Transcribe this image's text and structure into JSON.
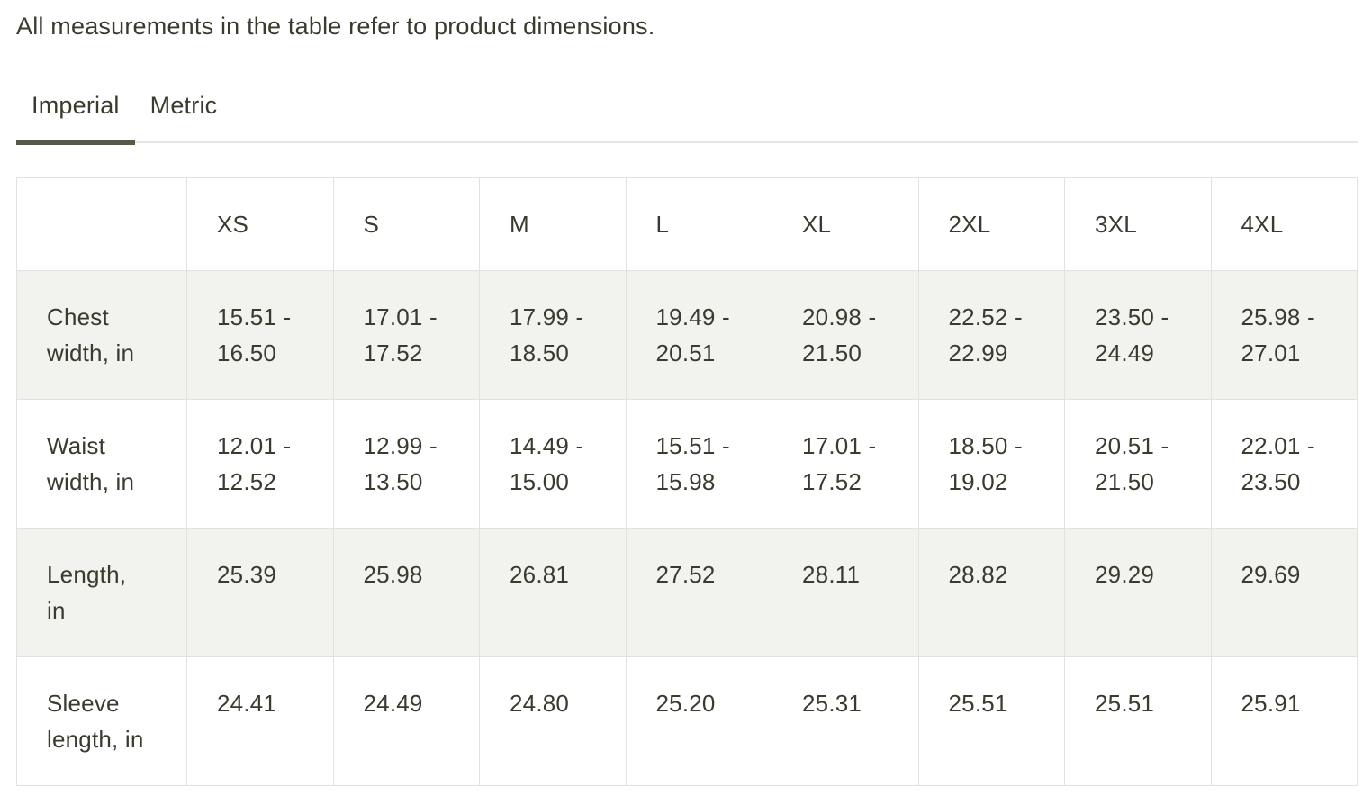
{
  "note": "All measurements in the table refer to product dimensions.",
  "tabs": [
    {
      "label": "Imperial",
      "active": true
    },
    {
      "label": "Metric",
      "active": false
    }
  ],
  "table": {
    "corner": "",
    "columns": [
      "XS",
      "S",
      "M",
      "L",
      "XL",
      "2XL",
      "3XL",
      "4XL"
    ],
    "rows": [
      {
        "label": "Chest\nwidth, in",
        "values": [
          "15.51 -\n16.50",
          "17.01 -\n17.52",
          "17.99 -\n18.50",
          "19.49 -\n20.51",
          "20.98 -\n21.50",
          "22.52 -\n22.99",
          "23.50 -\n24.49",
          "25.98 -\n27.01"
        ]
      },
      {
        "label": "Waist\nwidth, in",
        "values": [
          "12.01 -\n12.52",
          "12.99 -\n13.50",
          "14.49 -\n15.00",
          "15.51 -\n15.98",
          "17.01 -\n17.52",
          "18.50 -\n19.02",
          "20.51 -\n21.50",
          "22.01 -\n23.50"
        ]
      },
      {
        "label": "Length,\nin",
        "values": [
          "25.39",
          "25.98",
          "26.81",
          "27.52",
          "28.11",
          "28.82",
          "29.29",
          "29.69"
        ]
      },
      {
        "label": "Sleeve\nlength, in",
        "values": [
          "24.41",
          "24.49",
          "24.80",
          "25.20",
          "25.31",
          "25.51",
          "25.51",
          "25.91"
        ]
      }
    ]
  },
  "colors": {
    "text": "#3a3a2f",
    "active_tab_underline": "#585847",
    "tab_divider": "#e7e5e0",
    "shaded_row_bg": "#f2f2ee",
    "cell_border": "#e1e1dd"
  }
}
